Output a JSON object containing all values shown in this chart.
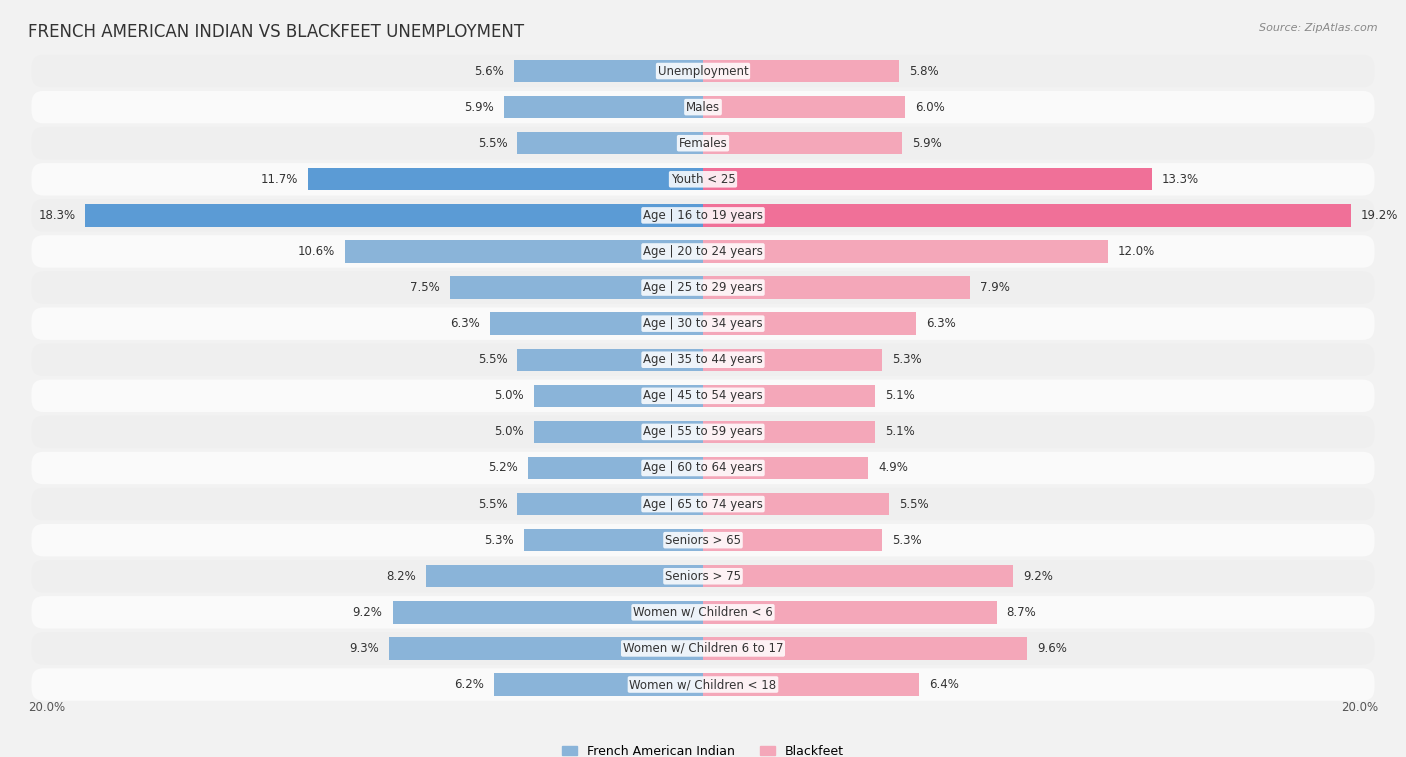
{
  "title": "FRENCH AMERICAN INDIAN VS BLACKFEET UNEMPLOYMENT",
  "source": "Source: ZipAtlas.com",
  "categories": [
    "Unemployment",
    "Males",
    "Females",
    "Youth < 25",
    "Age | 16 to 19 years",
    "Age | 20 to 24 years",
    "Age | 25 to 29 years",
    "Age | 30 to 34 years",
    "Age | 35 to 44 years",
    "Age | 45 to 54 years",
    "Age | 55 to 59 years",
    "Age | 60 to 64 years",
    "Age | 65 to 74 years",
    "Seniors > 65",
    "Seniors > 75",
    "Women w/ Children < 6",
    "Women w/ Children 6 to 17",
    "Women w/ Children < 18"
  ],
  "french_american_indian": [
    5.6,
    5.9,
    5.5,
    11.7,
    18.3,
    10.6,
    7.5,
    6.3,
    5.5,
    5.0,
    5.0,
    5.2,
    5.5,
    5.3,
    8.2,
    9.2,
    9.3,
    6.2
  ],
  "blackfeet": [
    5.8,
    6.0,
    5.9,
    13.3,
    19.2,
    12.0,
    7.9,
    6.3,
    5.3,
    5.1,
    5.1,
    4.9,
    5.5,
    5.3,
    9.2,
    8.7,
    9.6,
    6.4
  ],
  "color_french": "#8ab4d9",
  "color_blackfeet": "#f4a7b9",
  "color_french_highlight": "#5b9bd5",
  "color_blackfeet_highlight": "#f07098",
  "highlight_rows": [
    "Youth < 25",
    "Age | 16 to 19 years"
  ],
  "xlim": 20.0,
  "background_color": "#f2f2f2",
  "row_bg_color": "#ffffff",
  "row_alt_color": "#e8e8e8",
  "title_fontsize": 12,
  "label_fontsize": 8.5,
  "value_fontsize": 8.5,
  "legend_fontsize": 9
}
